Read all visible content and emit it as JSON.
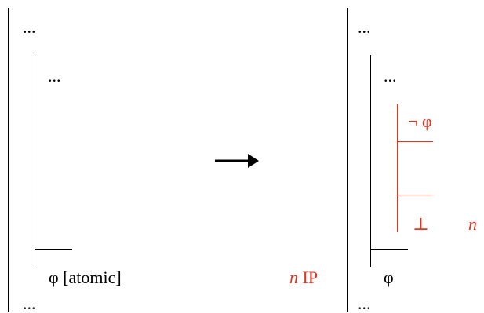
{
  "left": {
    "top_ellipsis": "...",
    "inner_ellipsis": "...",
    "phi_label": "φ [atomic]",
    "bottom_ellipsis": "..."
  },
  "rule": {
    "n": "n",
    "ip": "IP"
  },
  "right": {
    "top_ellipsis": "...",
    "inner_ellipsis": "...",
    "neg_phi": "¬ φ",
    "bottom_symbol": "⊥",
    "n_label": "n",
    "phi": "φ",
    "bottom_ellipsis": "..."
  },
  "colors": {
    "accent": "#e8321e",
    "ink": "#000000"
  },
  "icons": {
    "arrow": "right-arrow-icon"
  }
}
